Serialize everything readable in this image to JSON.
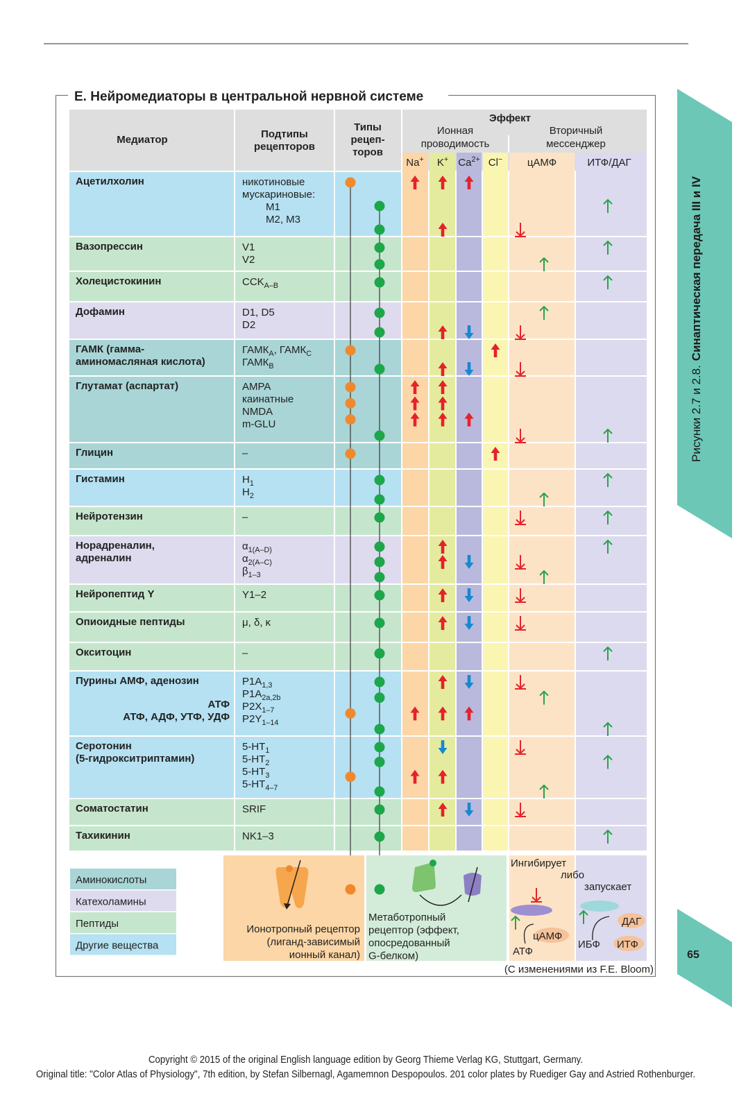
{
  "title": "E. Нейромедиаторы в центральной нервной системе",
  "columns": {
    "mediator": "Медиатор",
    "subtypes": [
      "Подтипы",
      "рецепторов"
    ],
    "types": [
      "Типы",
      "рецеп-",
      "торов"
    ],
    "effect": "Эффект",
    "ionic": [
      "Ионная",
      "проводимость"
    ],
    "second": [
      "Вторичный",
      "мессенджер"
    ],
    "ions": [
      [
        "Na",
        "+"
      ],
      [
        "K",
        "+"
      ],
      [
        "Ca",
        "2+"
      ],
      [
        "Cl",
        "−"
      ]
    ],
    "messengers": [
      "цАМФ",
      "ИТФ/ДАГ"
    ]
  },
  "receptor_colors": {
    "ion": "#f0892e",
    "meta": "#1da64a"
  },
  "column_colors": [
    "#fcd6a6",
    "#e5eb9e",
    "#b9b9dd",
    "#fbf5b2",
    "#fde3c6",
    "#dcdaee"
  ],
  "legend": [
    {
      "name": "Аминокислоты",
      "color": "#a9d5d6"
    },
    {
      "name": "Катехоламины",
      "color": "#dddbed"
    },
    {
      "name": "Пептиды",
      "color": "#c6e5cd"
    },
    {
      "name": "Другие вещества",
      "color": "#b5e1f2"
    }
  ],
  "rows": [
    {
      "name": [
        "Ацетилхолин"
      ],
      "group": 3,
      "subtypes": [
        [
          "никотиновые"
        ],
        [
          "мускариновые:"
        ],
        [
          "M1"
        ],
        [
          "M2, M3"
        ]
      ],
      "levels": [
        {
          "r": "ion",
          "na": "up",
          "k": "up",
          "ca": "up"
        },
        {
          "r": "meta",
          "itf": "up"
        },
        {
          "r": "meta",
          "k": "up",
          "camp": "down"
        }
      ]
    },
    {
      "name": [
        "Вазопрессин"
      ],
      "group": 2,
      "subtypes": [
        [
          "V1"
        ],
        [
          "V2"
        ]
      ],
      "levels": [
        {
          "r": "meta",
          "itf": "up"
        },
        {
          "r": "meta",
          "camp": "up"
        }
      ]
    },
    {
      "name": [
        "Холецистокинин"
      ],
      "group": 2,
      "subtypes": [
        [
          "CCK",
          "A–B"
        ]
      ],
      "levels": [
        {
          "r": "meta",
          "itf": "up"
        }
      ]
    },
    {
      "name": [
        "Дофамин"
      ],
      "group": 1,
      "subtypes": [
        [
          "D1, D5"
        ],
        [
          "D2"
        ]
      ],
      "levels": [
        {
          "r": "meta",
          "camp": "up"
        },
        {
          "r": "meta",
          "k": "up",
          "ca": "down",
          "camp": "down"
        }
      ]
    },
    {
      "name": [
        "ГАМК (гамма-",
        "аминомасляная кислота)"
      ],
      "group": 0,
      "subtypes": [
        [
          "ГАМК",
          "A",
          ", ГАМК",
          "C"
        ],
        [
          "ГАМК",
          "B"
        ]
      ],
      "levels": [
        {
          "r": "ion",
          "cl": "up"
        },
        {
          "r": "meta",
          "k": "up",
          "ca": "down",
          "camp": "down"
        }
      ]
    },
    {
      "name": [
        "Глутамат (аспартат)"
      ],
      "group": 0,
      "subtypes": [
        [
          "AMPA"
        ],
        [
          "каинатные"
        ],
        [
          "NMDA"
        ],
        [
          "m-GLU"
        ]
      ],
      "levels": [
        {
          "r": "ion",
          "na": "up",
          "k": "up"
        },
        {
          "r": "ion",
          "na": "up",
          "k": "up"
        },
        {
          "r": "ion",
          "na": "up",
          "k": "up",
          "ca": "up"
        },
        {
          "r": "meta",
          "camp": "down",
          "itf": "up"
        }
      ]
    },
    {
      "name": [
        "Глицин"
      ],
      "group": 0,
      "subtypes": [
        [
          "–"
        ]
      ],
      "levels": [
        {
          "r": "ion",
          "cl": "up"
        }
      ]
    },
    {
      "name": [
        "Гистамин"
      ],
      "group": 3,
      "subtypes": [
        [
          "H",
          "1"
        ],
        [
          "H",
          "2"
        ]
      ],
      "levels": [
        {
          "r": "meta",
          "itf": "up"
        },
        {
          "r": "meta",
          "camp": "up"
        }
      ]
    },
    {
      "name": [
        "Нейротензин"
      ],
      "group": 2,
      "subtypes": [
        [
          "–"
        ]
      ],
      "levels": [
        {
          "r": "meta",
          "camp": "down",
          "itf": "up"
        }
      ]
    },
    {
      "name": [
        "Норадреналин,",
        "адреналин"
      ],
      "group": 1,
      "subtypes": [
        [
          "α",
          "1(A–D)"
        ],
        [
          "α",
          "2(A–C)"
        ],
        [
          "β",
          "1–3"
        ]
      ],
      "levels": [
        {
          "r": "meta",
          "k": "up",
          "itf": "up"
        },
        {
          "r": "meta",
          "k": "up",
          "ca": "down",
          "camp": "down"
        },
        {
          "r": "meta",
          "camp": "up"
        }
      ]
    },
    {
      "name": [
        "Нейропептид Y"
      ],
      "group": 2,
      "subtypes": [
        [
          "Y1–2"
        ]
      ],
      "levels": [
        {
          "r": "meta",
          "k": "up",
          "ca": "down",
          "camp": "down"
        }
      ]
    },
    {
      "name": [
        "Опиоидные пептиды"
      ],
      "group": 2,
      "subtypes": [
        [
          "μ, δ, κ"
        ]
      ],
      "levels": [
        {
          "r": "meta",
          "k": "up",
          "ca": "down",
          "camp": "down"
        }
      ]
    },
    {
      "name": [
        "Окситоцин"
      ],
      "group": 2,
      "subtypes": [
        [
          "–"
        ]
      ],
      "levels": [
        {
          "r": "meta",
          "itf": "up"
        }
      ]
    },
    {
      "name": [
        "Пурины  АМФ, аденозин",
        "АТФ",
        "АТФ, АДФ, УТФ, УДФ"
      ],
      "group": 3,
      "subtypes": [
        [
          "P1A",
          "1,3"
        ],
        [
          "P1A",
          "2a,2b"
        ],
        [
          "P2X",
          "1–7"
        ],
        [
          "P2Y",
          "1–14"
        ]
      ],
      "levels": [
        {
          "r": "meta",
          "k": "up",
          "ca": "down",
          "camp": "down"
        },
        {
          "r": "meta",
          "camp": "up"
        },
        {
          "r": "ion",
          "na": "up",
          "k": "up",
          "ca": "up"
        },
        {
          "r": "meta",
          "itf": "up"
        }
      ]
    },
    {
      "name": [
        "Серотонин",
        "(5-гидрокситриптамин)"
      ],
      "group": 3,
      "subtypes": [
        [
          "5-HT",
          "1"
        ],
        [
          "5-HT",
          "2"
        ],
        [
          "5-HT",
          "3"
        ],
        [
          "5-HT",
          "4–7"
        ]
      ],
      "levels": [
        {
          "r": "meta",
          "k": "down",
          "camp": "down"
        },
        {
          "r": "meta",
          "itf": "up"
        },
        {
          "r": "ion",
          "na": "up",
          "k": "up"
        },
        {
          "r": "meta",
          "camp": "up"
        }
      ]
    },
    {
      "name": [
        "Соматостатин"
      ],
      "group": 2,
      "subtypes": [
        [
          "SRIF"
        ]
      ],
      "levels": [
        {
          "r": "meta",
          "k": "up",
          "ca": "down",
          "camp": "down"
        }
      ]
    },
    {
      "name": [
        "Тахикинин"
      ],
      "group": 2,
      "subtypes": [
        [
          "NK1–3"
        ]
      ],
      "levels": [
        {
          "r": "meta",
          "itf": "up"
        }
      ]
    }
  ],
  "boxes": {
    "ionotropic": [
      "Ионотропный рецептор",
      "(лиганд-зависимый",
      "ионный канал)"
    ],
    "metabotropic": [
      "Метаботропный",
      "рецептор (эффект,",
      "опосредованный",
      "G-белком)"
    ],
    "second": [
      "Ингибирует",
      "либо",
      "запускает",
      "АТФ",
      "цАМФ",
      "ИБФ",
      "ИТФ",
      "ДАГ"
    ]
  },
  "source": "(С изменениями из F.E. Bloom)",
  "side_tab": [
    "Рисунки 2.7 и 2.8.",
    "Синаптическая передача III и IV"
  ],
  "page_number": "65",
  "copyright": [
    "Copyright © 2015 of the original English language edition by Georg Thieme Verlag KG, Stuttgart, Germany.",
    "Original title: \"Color Atlas of Physiology\", 7th edition, by Stefan Silbernagl, Agamemnon Despopoulos. 201 color plates by Ruediger Gay and Astried Rothenburger."
  ]
}
